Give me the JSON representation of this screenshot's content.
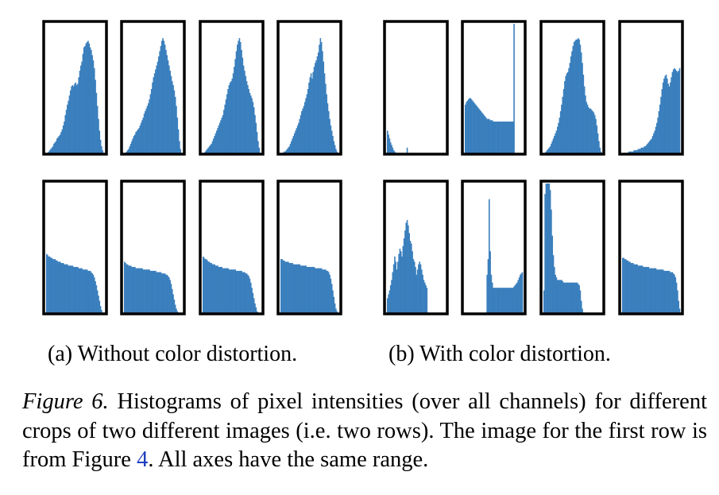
{
  "chart_data": {
    "type": "bar",
    "shared_axes": true,
    "bar_color": "#3a7fbd",
    "frame_color": "#000000",
    "panels": [
      {
        "group": "a",
        "row": 1,
        "col": 1,
        "values": [
          0,
          1,
          2,
          3,
          4,
          5,
          6,
          8,
          9,
          10,
          12,
          13,
          14,
          15,
          17,
          19,
          22,
          25,
          30,
          34,
          38,
          41,
          45,
          49,
          52,
          53,
          52,
          54,
          55,
          53,
          54,
          59,
          64,
          68,
          71,
          77,
          82,
          83,
          85,
          86,
          87,
          85,
          82,
          80,
          76,
          72,
          66,
          57,
          47,
          37,
          27,
          18,
          11,
          6,
          3,
          1
        ]
      },
      {
        "group": "a",
        "row": 1,
        "col": 2,
        "values": [
          0,
          1,
          2,
          3,
          4,
          6,
          8,
          10,
          12,
          14,
          15,
          17,
          18,
          19,
          20,
          22,
          24,
          26,
          28,
          31,
          33,
          35,
          37,
          39,
          42,
          46,
          50,
          55,
          59,
          62,
          65,
          68,
          71,
          75,
          79,
          83,
          87,
          89,
          87,
          84,
          80,
          76,
          72,
          68,
          64,
          60,
          56,
          53,
          49,
          44,
          37,
          28,
          19,
          10,
          4,
          1
        ]
      },
      {
        "group": "a",
        "row": 1,
        "col": 3,
        "values": [
          0,
          1,
          2,
          3,
          4,
          5,
          6,
          7,
          8,
          10,
          12,
          14,
          16,
          18,
          20,
          22,
          24,
          26,
          28,
          30,
          34,
          38,
          42,
          46,
          50,
          53,
          55,
          56,
          58,
          62,
          67,
          73,
          79,
          84,
          87,
          89,
          86,
          80,
          74,
          68,
          64,
          60,
          56,
          53,
          50,
          47,
          45,
          43,
          40,
          36,
          30,
          24,
          17,
          10,
          5,
          1
        ]
      },
      {
        "group": "a",
        "row": 1,
        "col": 4,
        "values": [
          0,
          1,
          1,
          2,
          2,
          3,
          4,
          5,
          6,
          8,
          10,
          12,
          14,
          16,
          18,
          20,
          22,
          24,
          27,
          30,
          33,
          35,
          37,
          40,
          43,
          46,
          50,
          55,
          59,
          62,
          58,
          63,
          67,
          70,
          72,
          75,
          78,
          84,
          89,
          86,
          79,
          71,
          62,
          54,
          46,
          39,
          33,
          27,
          22,
          18,
          14,
          10,
          7,
          4,
          2,
          1
        ]
      },
      {
        "group": "a",
        "row": 2,
        "col": 1,
        "values": [
          46,
          45,
          44,
          44,
          43,
          43,
          42,
          42,
          42,
          41,
          41,
          40,
          40,
          40,
          39,
          39,
          39,
          38,
          38,
          38,
          38,
          37,
          37,
          37,
          37,
          37,
          36,
          36,
          36,
          36,
          36,
          35,
          35,
          35,
          35,
          34,
          34,
          34,
          34,
          34,
          33,
          33,
          33,
          32,
          31,
          30,
          28,
          25,
          22,
          18,
          14,
          10,
          6,
          3,
          1,
          0
        ]
      },
      {
        "group": "a",
        "row": 2,
        "col": 2,
        "values": [
          40,
          39,
          38,
          38,
          37,
          37,
          37,
          36,
          36,
          36,
          36,
          35,
          35,
          35,
          35,
          35,
          35,
          35,
          34,
          34,
          34,
          34,
          34,
          34,
          34,
          33,
          33,
          33,
          33,
          33,
          33,
          32,
          32,
          32,
          32,
          32,
          31,
          31,
          31,
          31,
          30,
          30,
          29,
          28,
          26,
          23,
          19,
          15,
          11,
          7,
          4,
          2,
          1,
          0,
          0,
          0
        ]
      },
      {
        "group": "a",
        "row": 2,
        "col": 3,
        "values": [
          44,
          43,
          42,
          42,
          41,
          40,
          40,
          39,
          39,
          38,
          38,
          38,
          37,
          37,
          37,
          36,
          36,
          36,
          36,
          35,
          35,
          35,
          35,
          35,
          35,
          34,
          34,
          34,
          34,
          34,
          34,
          34,
          33,
          33,
          33,
          33,
          33,
          33,
          32,
          32,
          32,
          31,
          31,
          30,
          29,
          27,
          24,
          20,
          16,
          12,
          8,
          5,
          2,
          1,
          0,
          0
        ]
      },
      {
        "group": "a",
        "row": 2,
        "col": 4,
        "values": [
          42,
          42,
          41,
          41,
          40,
          40,
          40,
          40,
          39,
          39,
          39,
          39,
          38,
          38,
          38,
          38,
          38,
          38,
          38,
          37,
          37,
          37,
          37,
          37,
          37,
          36,
          36,
          36,
          36,
          36,
          36,
          36,
          36,
          35,
          35,
          35,
          35,
          35,
          35,
          35,
          34,
          34,
          34,
          34,
          33,
          33,
          32,
          30,
          27,
          23,
          18,
          13,
          8,
          4,
          2,
          0
        ]
      },
      {
        "group": "b",
        "row": 1,
        "col": 1,
        "values": [
          18,
          15,
          12,
          9,
          7,
          5,
          3,
          2,
          1,
          1,
          0,
          0,
          0,
          0,
          0,
          0,
          0,
          0,
          0,
          5,
          0,
          0,
          0,
          0,
          0,
          0,
          0,
          0,
          0,
          0,
          0,
          0,
          0,
          0,
          0,
          0,
          0,
          0,
          0,
          0,
          0,
          0,
          0,
          0,
          0,
          0,
          0,
          0,
          0,
          0,
          0,
          0,
          0,
          0,
          0,
          0
        ]
      },
      {
        "group": "b",
        "row": 1,
        "col": 2,
        "values": [
          38,
          40,
          41,
          42,
          43,
          43,
          42,
          41,
          40,
          39,
          38,
          37,
          36,
          35,
          34,
          33,
          32,
          31,
          30,
          29,
          28,
          27,
          27,
          27,
          26,
          26,
          26,
          25,
          25,
          25,
          25,
          25,
          25,
          25,
          25,
          25,
          25,
          25,
          25,
          25,
          25,
          25,
          25,
          25,
          25,
          25,
          25,
          200,
          0,
          0,
          0,
          0,
          0,
          0,
          0,
          0
        ]
      },
      {
        "group": "b",
        "row": 1,
        "col": 3,
        "values": [
          0,
          1,
          2,
          3,
          4,
          5,
          6,
          8,
          10,
          12,
          14,
          16,
          18,
          21,
          24,
          28,
          33,
          38,
          44,
          50,
          56,
          60,
          62,
          63,
          66,
          70,
          75,
          79,
          83,
          86,
          87,
          88,
          88,
          89,
          88,
          84,
          78,
          70,
          61,
          52,
          45,
          40,
          38,
          36,
          35,
          35,
          34,
          33,
          32,
          30,
          27,
          22,
          16,
          10,
          5,
          2
        ]
      },
      {
        "group": "b",
        "row": 1,
        "col": 4,
        "values": [
          0,
          0,
          1,
          1,
          1,
          1,
          2,
          2,
          2,
          2,
          2,
          3,
          3,
          3,
          3,
          4,
          4,
          4,
          5,
          5,
          5,
          6,
          6,
          7,
          8,
          9,
          10,
          11,
          12,
          14,
          16,
          18,
          21,
          24,
          28,
          33,
          38,
          44,
          50,
          55,
          58,
          60,
          61,
          58,
          54,
          52,
          55,
          59,
          63,
          65,
          66,
          65,
          64,
          63,
          64,
          66
        ]
      },
      {
        "group": "b",
        "row": 2,
        "col": 1,
        "values": [
          12,
          15,
          18,
          22,
          26,
          32,
          38,
          44,
          40,
          34,
          40,
          46,
          50,
          48,
          44,
          52,
          58,
          64,
          70,
          72,
          68,
          62,
          56,
          54,
          48,
          42,
          40,
          36,
          30,
          34,
          38,
          40,
          38,
          34,
          30,
          26,
          24,
          22,
          20,
          0,
          0,
          0,
          0,
          0,
          0,
          0,
          0,
          0,
          0,
          0,
          0,
          0,
          0,
          0,
          0,
          0
        ]
      },
      {
        "group": "b",
        "row": 2,
        "col": 2,
        "values": [
          0,
          0,
          0,
          0,
          0,
          0,
          0,
          0,
          0,
          0,
          0,
          0,
          0,
          0,
          0,
          0,
          0,
          0,
          0,
          0,
          0,
          30,
          42,
          88,
          48,
          30,
          24,
          20,
          20,
          20,
          20,
          20,
          20,
          20,
          20,
          20,
          20,
          20,
          20,
          20,
          20,
          20,
          20,
          20,
          20,
          20,
          20,
          21,
          22,
          23,
          24,
          26,
          28,
          30,
          31,
          32
        ]
      },
      {
        "group": "b",
        "row": 2,
        "col": 3,
        "values": [
          18,
          92,
          200,
          168,
          150,
          120,
          95,
          80,
          60,
          45,
          36,
          30,
          28,
          26,
          26,
          26,
          26,
          26,
          25,
          24,
          24,
          24,
          24,
          24,
          24,
          24,
          24,
          24,
          24,
          24,
          24,
          24,
          24,
          23,
          22,
          18,
          10,
          4,
          1,
          0,
          0,
          0,
          0,
          0,
          0,
          0,
          0,
          0,
          0,
          0,
          0,
          0,
          0,
          0,
          0,
          0
        ]
      },
      {
        "group": "b",
        "row": 2,
        "col": 4,
        "values": [
          43,
          43,
          42,
          42,
          41,
          41,
          40,
          40,
          39,
          39,
          39,
          38,
          38,
          38,
          38,
          37,
          37,
          37,
          37,
          37,
          36,
          36,
          36,
          36,
          36,
          36,
          35,
          35,
          35,
          35,
          35,
          35,
          35,
          34,
          34,
          34,
          34,
          34,
          34,
          34,
          33,
          33,
          33,
          33,
          33,
          33,
          32,
          32,
          32,
          31,
          30,
          28,
          24,
          18,
          10,
          4
        ]
      }
    ]
  },
  "subcaptions": {
    "a": "(a) Without color distortion.",
    "b": "(b) With color distortion."
  },
  "caption": {
    "label": "Figure 6.",
    "text_before_ref": " Histograms of pixel intensities (over all channels) for different crops of two different images (i.e. two rows). The image for the first row is from Figure ",
    "ref": "4",
    "text_after_ref": ". All axes have the same range."
  }
}
